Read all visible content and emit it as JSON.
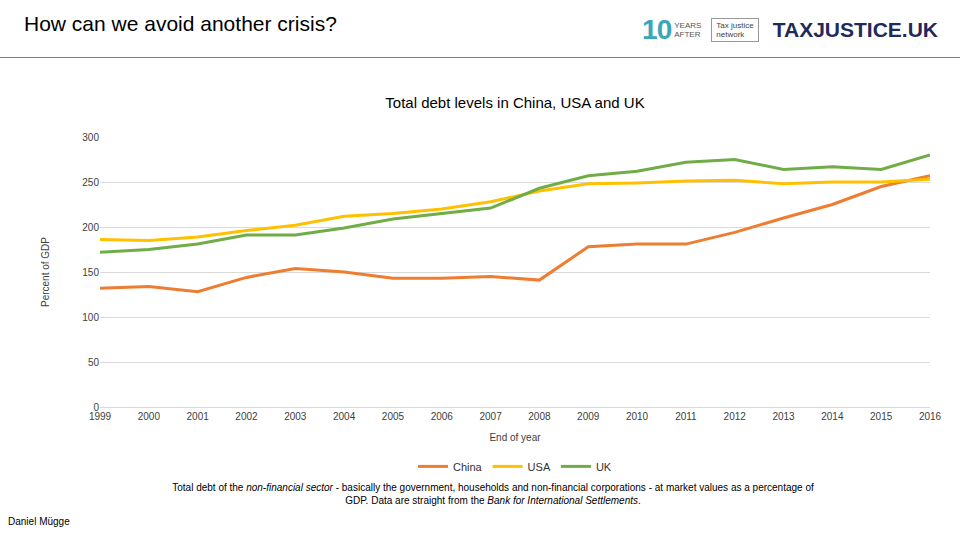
{
  "slide": {
    "heading": "How can we avoid another crisis?",
    "logos": {
      "badge_number": "10",
      "badge_text": [
        "YEARS",
        "AFTER"
      ],
      "network": [
        "Tax justice",
        "network"
      ],
      "brand": "TAXJUSTICE.UK"
    },
    "caption": [
      {
        "text": "Total debt of the ",
        "italic": false
      },
      {
        "text": "non-financial sector",
        "italic": true
      },
      {
        "text": " - basically the government, households and non-financial corporations - at market values as a percentage of GDP. Data are straight from the ",
        "italic": false
      },
      {
        "text": "Bank for International Settlements",
        "italic": true
      },
      {
        "text": ".",
        "italic": false
      }
    ],
    "author": "Daniel Mügge"
  },
  "chart_data": {
    "type": "line",
    "title": "Total debt levels in China, USA and UK",
    "x_label": "End of year",
    "y_label": "Percent of GDP",
    "categories": [
      "1999",
      "2000",
      "2001",
      "2002",
      "2003",
      "2004",
      "2005",
      "2006",
      "2007",
      "2008",
      "2009",
      "2010",
      "2011",
      "2012",
      "2013",
      "2014",
      "2015",
      "2016"
    ],
    "series": [
      {
        "name": "China",
        "color": "#ed7d31",
        "values": [
          132,
          134,
          128,
          144,
          154,
          150,
          143,
          143,
          145,
          141,
          178,
          181,
          181,
          194,
          210,
          225,
          245,
          257
        ]
      },
      {
        "name": "USA",
        "color": "#ffc000",
        "values": [
          186,
          185,
          189,
          196,
          202,
          212,
          215,
          220,
          228,
          240,
          248,
          249,
          251,
          252,
          248,
          250,
          250,
          253
        ]
      },
      {
        "name": "UK",
        "color": "#70ad47",
        "values": [
          172,
          175,
          181,
          191,
          191,
          199,
          209,
          215,
          221,
          243,
          257,
          262,
          272,
          275,
          264,
          267,
          264,
          280
        ]
      }
    ],
    "ylim": [
      0,
      300
    ],
    "yticks": [
      0,
      50,
      100,
      150,
      200,
      250,
      300
    ],
    "grid": true,
    "legend": "bottom"
  }
}
